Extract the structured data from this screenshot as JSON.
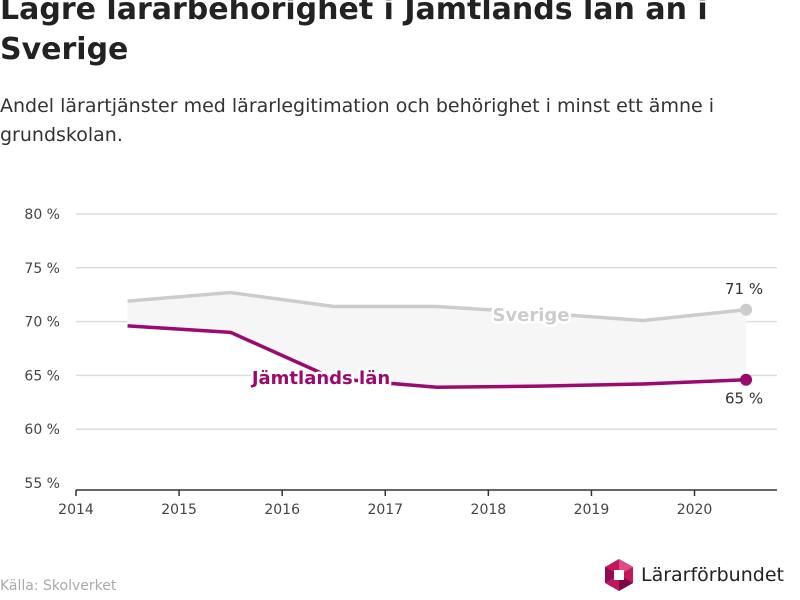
{
  "title": "Lägre lärarbehörighet i Jämtlands län än i Sverige",
  "subtitle": "Andel lärartjänster med lärarlegitimation och behörighet i minst ett ämne i grundskolan.",
  "source": "Källa: Skolverket",
  "brand": {
    "name": "Lärarförbundet",
    "logo_icon": "lararforbundet-logo-icon"
  },
  "colors": {
    "sverige": "#cccccc",
    "jamtland": "#9b0a6e",
    "fill": "#f6f6f6",
    "grid": "#dddddd",
    "axis": "#333333"
  },
  "chart_data": {
    "type": "line",
    "title": "Lägre lärarbehörighet i Jämtlands län än i Sverige",
    "subtitle": "Andel lärartjänster med lärarlegitimation och behörighet i minst ett ämne i grundskolan.",
    "x": [
      2014.5,
      2015.5,
      2016.5,
      2017.5,
      2018.5,
      2019.5,
      2020.5
    ],
    "x_ticks": [
      2014,
      2015,
      2016,
      2017,
      2018,
      2019,
      2020
    ],
    "x_tick_labels": [
      "2014",
      "2015",
      "2016",
      "2017",
      "2018",
      "2019",
      "2020"
    ],
    "xlim": [
      2014,
      2020.8
    ],
    "ylim": [
      55,
      80
    ],
    "y_ticks": [
      55,
      60,
      65,
      70,
      75,
      80
    ],
    "y_tick_labels": [
      "55 %",
      "60 %",
      "65 %",
      "70 %",
      "75 %",
      "80 %"
    ],
    "grid": true,
    "series": [
      {
        "name": "Sverige",
        "values": [
          71.9,
          72.7,
          71.4,
          71.4,
          70.8,
          70.1,
          71.1
        ],
        "end_label": "71 %"
      },
      {
        "name": "Jämtlands län",
        "values": [
          69.6,
          69.0,
          64.7,
          63.9,
          64.0,
          64.2,
          64.6
        ],
        "end_label": "65 %"
      }
    ]
  }
}
